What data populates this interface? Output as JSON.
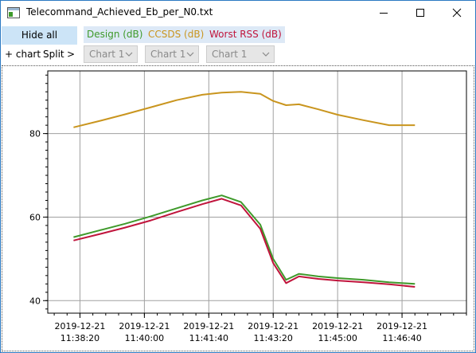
{
  "window": {
    "title": "Telecommand_Achieved_Eb_per_N0.txt",
    "minimize_icon": "minimize-icon",
    "maximize_icon": "maximize-icon",
    "close_icon": "close-icon"
  },
  "toolbar": {
    "hide_all_label": "Hide all",
    "series_buttons": [
      {
        "label": "Design (dB)",
        "color": "#3f9a2b"
      },
      {
        "label": "CCSDS (dB)",
        "color": "#c9951e"
      },
      {
        "label": "Worst RSS (dB)",
        "color": "#c0143c"
      }
    ],
    "add_chart_label": "+ chart",
    "split_label": "Split",
    "more_label": ">",
    "chart_selects": [
      "Chart 1",
      "Chart 1",
      "Chart 1"
    ]
  },
  "chart_data": {
    "type": "line",
    "x_tick_labels": [
      [
        "2019-12-21",
        "11:38:20"
      ],
      [
        "2019-12-21",
        "11:40:00"
      ],
      [
        "2019-12-21",
        "11:41:40"
      ],
      [
        "2019-12-21",
        "11:43:20"
      ],
      [
        "2019-12-21",
        "11:45:00"
      ],
      [
        "2019-12-21",
        "11:46:40"
      ]
    ],
    "y_ticks": [
      40,
      60,
      80
    ],
    "ylim": [
      37,
      95
    ],
    "grid": true,
    "x": [
      "11:38:10",
      "11:38:50",
      "11:39:30",
      "11:40:10",
      "11:40:50",
      "11:41:30",
      "11:42:00",
      "11:42:30",
      "11:43:00",
      "11:43:20",
      "11:43:40",
      "11:44:00",
      "11:44:30",
      "11:45:00",
      "11:45:40",
      "11:46:20",
      "11:47:00"
    ],
    "series": [
      {
        "name": "Design (dB)",
        "color": "#3f9a2b",
        "values": [
          55.2,
          56.8,
          58.4,
          60.2,
          62.1,
          64.0,
          65.2,
          63.6,
          58.2,
          50.0,
          45.0,
          46.4,
          45.8,
          45.4,
          45.0,
          44.4,
          44.0
        ]
      },
      {
        "name": "CCSDS (dB)",
        "color": "#c9951e",
        "values": [
          81.5,
          83.0,
          84.6,
          86.3,
          88.0,
          89.3,
          89.8,
          90.0,
          89.5,
          87.8,
          86.8,
          87.0,
          85.8,
          84.5,
          83.2,
          82.0,
          82.0
        ]
      },
      {
        "name": "Worst RSS (dB)",
        "color": "#c0143c",
        "values": [
          54.4,
          55.9,
          57.5,
          59.2,
          61.2,
          63.1,
          64.4,
          62.8,
          57.2,
          49.0,
          44.2,
          45.8,
          45.2,
          44.8,
          44.4,
          43.9,
          43.3
        ]
      }
    ]
  }
}
